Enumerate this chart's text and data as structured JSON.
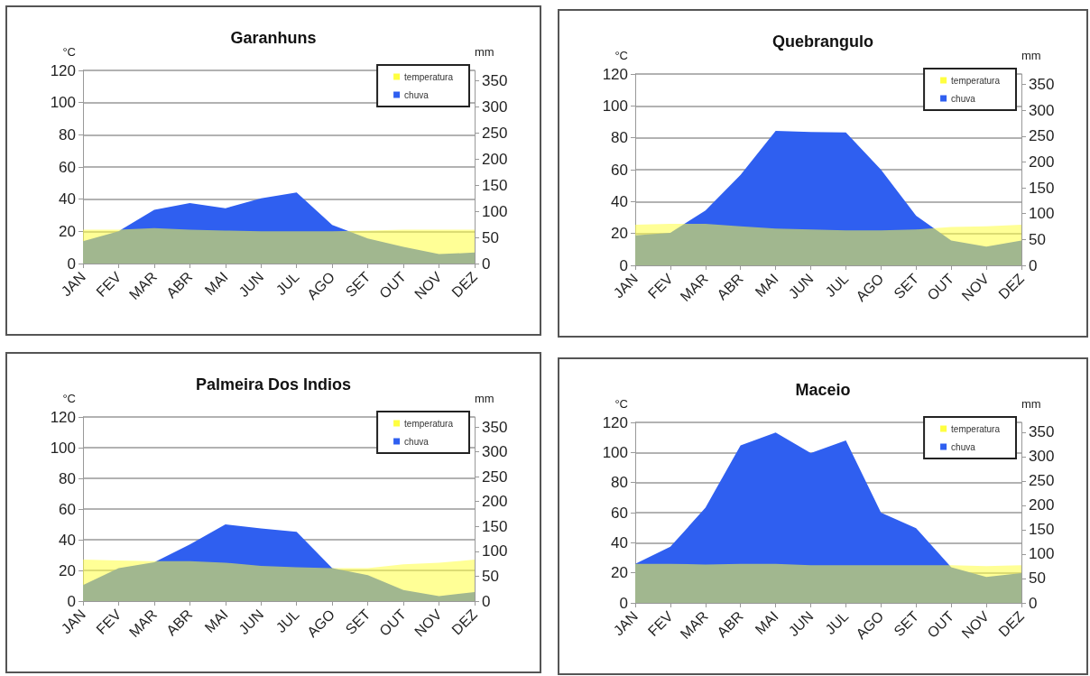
{
  "chart_data": [
    {
      "type": "area",
      "title": "Garanhuns",
      "ylabel": "°C",
      "y2label": "mm",
      "categories": [
        "JAN",
        "FEV",
        "MAR",
        "ABR",
        "MAI",
        "JUN",
        "JUL",
        "AGO",
        "SET",
        "OUT",
        "NOV",
        "DEZ"
      ],
      "series": [
        {
          "name": "temperatura",
          "color": "#ffff40",
          "values": [
            21,
            21,
            22,
            21,
            20.5,
            20,
            20,
            20,
            20.5,
            21,
            21,
            21
          ]
        },
        {
          "name": "chuva",
          "color": "#2f5ff0",
          "axis": "y2",
          "values": [
            43,
            62,
            103,
            116,
            106,
            125,
            136,
            74,
            48,
            32,
            18,
            21
          ]
        }
      ],
      "ylim": [
        0,
        120
      ],
      "yticks": [
        0,
        20,
        40,
        60,
        80,
        100,
        120
      ],
      "y2lim": [
        0,
        370
      ],
      "y2ticks": [
        0,
        50,
        100,
        150,
        200,
        250,
        300,
        350
      ],
      "grid": "y",
      "legend": "top right"
    },
    {
      "type": "area",
      "title": "Quebrangulo",
      "ylabel": "°C",
      "y2label": "mm",
      "categories": [
        "JAN",
        "FEV",
        "MAR",
        "ABR",
        "MAI",
        "JUN",
        "JUL",
        "AGO",
        "SET",
        "OUT",
        "NOV",
        "DEZ"
      ],
      "series": [
        {
          "name": "temperatura",
          "color": "#ffff40",
          "values": [
            25.5,
            26,
            26,
            24.5,
            23,
            22.5,
            22,
            22,
            22.5,
            24,
            24.5,
            25.5
          ]
        },
        {
          "name": "chuva",
          "color": "#2f5ff0",
          "axis": "y2",
          "values": [
            58,
            63,
            106,
            175,
            260,
            258,
            257,
            185,
            96,
            48,
            36,
            48
          ]
        }
      ],
      "ylim": [
        0,
        120
      ],
      "yticks": [
        0,
        20,
        40,
        60,
        80,
        100,
        120
      ],
      "y2lim": [
        0,
        370
      ],
      "y2ticks": [
        0,
        50,
        100,
        150,
        200,
        250,
        300,
        350
      ],
      "grid": "y",
      "legend": "top right"
    },
    {
      "type": "area",
      "title": "Palmeira Dos Indios",
      "ylabel": "°C",
      "y2label": "mm",
      "categories": [
        "JAN",
        "FEV",
        "MAR",
        "ABR",
        "MAI",
        "JUN",
        "JUL",
        "AGO",
        "SET",
        "OUT",
        "NOV",
        "DEZ"
      ],
      "series": [
        {
          "name": "temperatura",
          "color": "#ffff40",
          "values": [
            27,
            26.5,
            26,
            26,
            25,
            23,
            22,
            21.5,
            21.5,
            24,
            25,
            27
          ]
        },
        {
          "name": "chuva",
          "color": "#2f5ff0",
          "axis": "y2",
          "values": [
            32,
            66,
            78,
            114,
            154,
            146,
            139,
            66,
            52,
            22,
            10,
            18
          ]
        }
      ],
      "ylim": [
        0,
        120
      ],
      "yticks": [
        0,
        20,
        40,
        60,
        80,
        100,
        120
      ],
      "y2lim": [
        0,
        370
      ],
      "y2ticks": [
        0,
        50,
        100,
        150,
        200,
        250,
        300,
        350
      ],
      "grid": "y",
      "legend": "top right"
    },
    {
      "type": "area",
      "title": "Maceio",
      "ylabel": "°C",
      "y2label": "mm",
      "categories": [
        "JAN",
        "FEV",
        "MAR",
        "ABR",
        "MAI",
        "JUN",
        "JUL",
        "AGO",
        "SET",
        "OUT",
        "NOV",
        "DEZ"
      ],
      "series": [
        {
          "name": "temperatura",
          "color": "#ffff40",
          "values": [
            26,
            26,
            25.5,
            26,
            26,
            25,
            25,
            25,
            25,
            25,
            24.5,
            25
          ]
        },
        {
          "name": "chuva",
          "color": "#2f5ff0",
          "axis": "y2",
          "values": [
            80,
            115,
            195,
            323,
            349,
            307,
            333,
            185,
            153,
            73,
            53,
            61
          ]
        }
      ],
      "ylim": [
        0,
        120
      ],
      "yticks": [
        0,
        20,
        40,
        60,
        80,
        100,
        120
      ],
      "y2lim": [
        0,
        370
      ],
      "y2ticks": [
        0,
        50,
        100,
        150,
        200,
        250,
        300,
        350
      ],
      "grid": "y",
      "legend": "top right"
    }
  ]
}
